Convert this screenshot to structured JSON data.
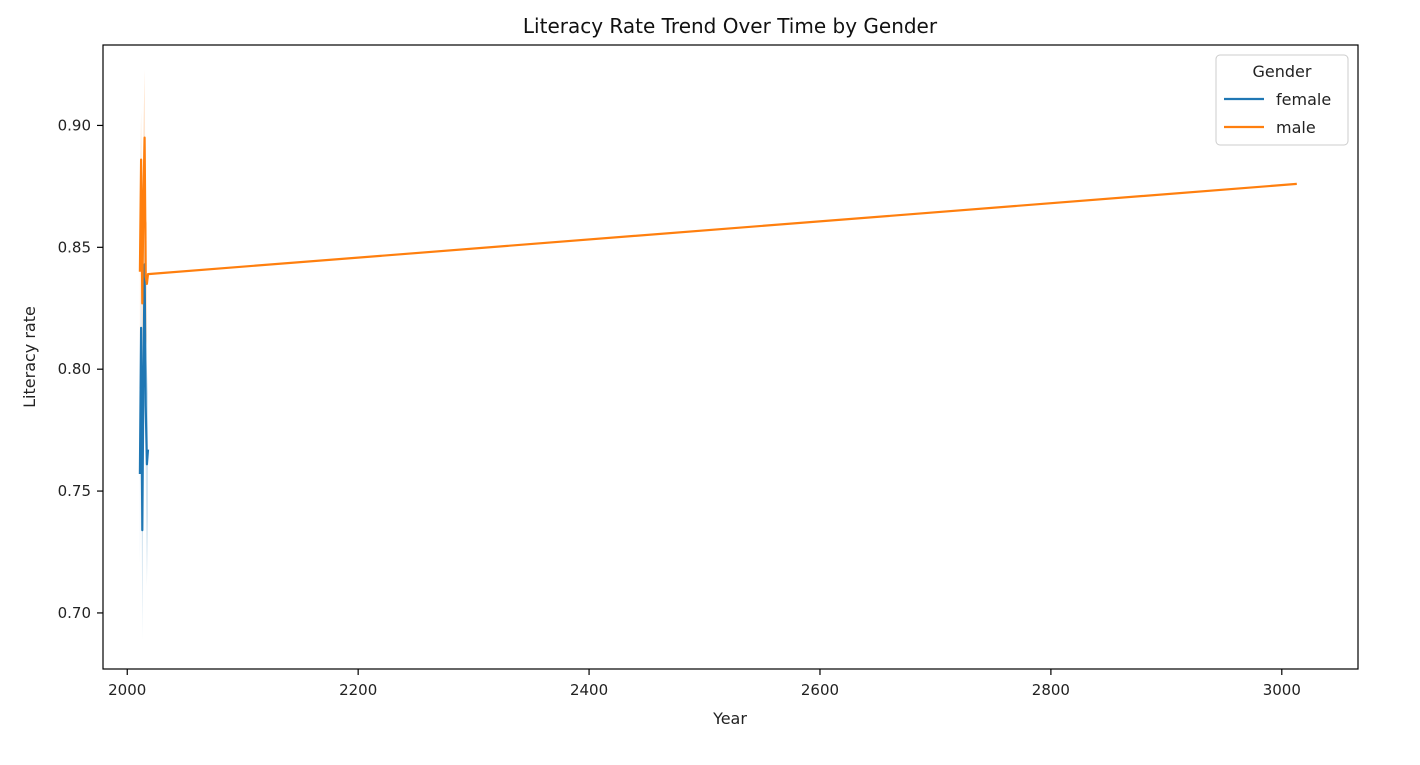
{
  "chart_data": {
    "type": "line",
    "title": "Literacy Rate Trend Over Time by Gender",
    "xlabel": "Year",
    "ylabel": "Literacy rate",
    "xlim": [
      1979,
      3066
    ],
    "ylim": [
      0.677,
      0.933
    ],
    "xticks": [
      2000,
      2200,
      2400,
      2600,
      2800,
      3000
    ],
    "yticks": [
      0.7,
      0.75,
      0.8,
      0.85,
      0.9
    ],
    "ytick_labels": [
      "0.70",
      "0.75",
      "0.80",
      "0.85",
      "0.90"
    ],
    "grid": false,
    "legend": {
      "title": "Gender",
      "position": "top-right"
    },
    "series": [
      {
        "name": "female",
        "color": "#1f77b4",
        "x": [
          2011,
          2012,
          2013,
          2014,
          2015,
          2016,
          2017,
          2018
        ],
        "y": [
          0.757,
          0.817,
          0.734,
          0.796,
          0.843,
          0.785,
          0.761,
          0.767
        ],
        "ci_lower": [
          0.72,
          0.79,
          0.689,
          0.76,
          0.815,
          0.76,
          0.711,
          0.74
        ],
        "ci_upper": [
          0.79,
          0.842,
          0.77,
          0.826,
          0.861,
          0.812,
          0.8,
          0.79
        ]
      },
      {
        "name": "male",
        "color": "#ff7f0e",
        "x": [
          2011,
          2012,
          2013,
          2014,
          2015,
          2016,
          2017,
          2018,
          3013
        ],
        "y": [
          0.84,
          0.886,
          0.827,
          0.87,
          0.895,
          0.838,
          0.835,
          0.839,
          0.876
        ],
        "ci_lower": [
          0.81,
          0.86,
          0.79,
          0.84,
          0.87,
          0.815,
          0.81,
          0.839,
          0.876
        ],
        "ci_upper": [
          0.87,
          0.906,
          0.86,
          0.898,
          0.923,
          0.862,
          0.86,
          0.839,
          0.876
        ]
      }
    ]
  }
}
